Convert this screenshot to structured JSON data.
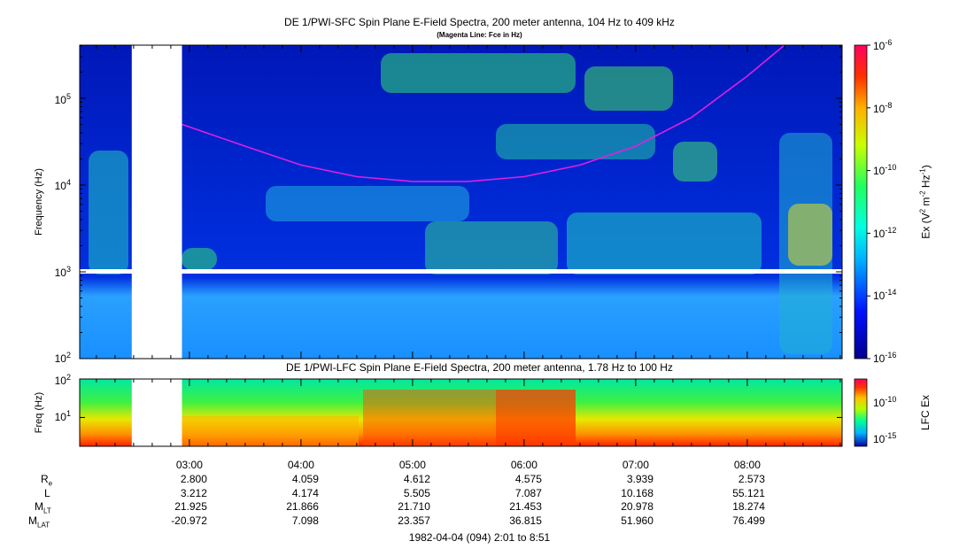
{
  "chart_data": [
    {
      "type": "heatmap",
      "title": "DE 1/PWI-SFC  Spin Plane E-Field Spectra, 200 meter antenna, 104 Hz to 409 kHz",
      "subtitle": "(Magenta Line: Fce in Hz)",
      "ylabel": "Frequency (Hz)",
      "yscale": "log",
      "ylim": [
        100,
        409000
      ],
      "ytick_labels": [
        {
          "base": "10",
          "exp": "2"
        },
        {
          "base": "10",
          "exp": "3"
        },
        {
          "base": "10",
          "exp": "4"
        },
        {
          "base": "10",
          "exp": "5"
        }
      ],
      "colorbar": {
        "label_pre": "Ex (V",
        "label_exp1": "2",
        "label_mid": " m",
        "label_exp2": "-2",
        "label_mid2": " Hz",
        "label_exp3": "-1",
        "label_post": ")",
        "scale": "log",
        "range": [
          1e-16,
          1e-06
        ],
        "ticks": [
          {
            "base": "10",
            "exp": "-6"
          },
          {
            "base": "10",
            "exp": "-8"
          },
          {
            "base": "10",
            "exp": "-10"
          },
          {
            "base": "10",
            "exp": "-12"
          },
          {
            "base": "10",
            "exp": "-14"
          },
          {
            "base": "10",
            "exp": "-16"
          }
        ]
      },
      "data_gap_time": [
        "02:29",
        "02:56"
      ],
      "fce_line_color": "#e020e0",
      "fce_line_hz": {
        "times": [
          "02:56",
          "03:30",
          "04:00",
          "04:30",
          "05:00",
          "05:30",
          "06:00",
          "06:30",
          "07:00",
          "07:30",
          "08:00",
          "08:20"
        ],
        "values": [
          50000,
          28000,
          17000,
          12500,
          11000,
          11000,
          12500,
          17000,
          28000,
          60000,
          180000,
          409000
        ]
      }
    },
    {
      "type": "heatmap",
      "title": "DE 1/PWI-LFC  Spin Plane E-Field Spectra, 200 meter antenna, 1.78 Hz to 100 Hz",
      "ylabel": "Freq (Hz)",
      "yscale": "log",
      "ylim": [
        1.78,
        100
      ],
      "ytick_labels": [
        {
          "base": "10",
          "exp": "1"
        },
        {
          "base": "10",
          "exp": "2"
        }
      ],
      "colorbar": {
        "label": "LFC Ex",
        "scale": "log",
        "ticks": [
          {
            "base": "10",
            "exp": "-10"
          },
          {
            "base": "10",
            "exp": "-15"
          }
        ]
      }
    }
  ],
  "x_axis": {
    "range": [
      "02:01",
      "08:51"
    ],
    "ticks": [
      "03:00",
      "04:00",
      "05:00",
      "06:00",
      "07:00",
      "08:00"
    ]
  },
  "ephemeris": [
    {
      "name": "R",
      "sub": "e",
      "values": [
        "2.800",
        "4.059",
        "4.612",
        "4.575",
        "3.939",
        "2.573"
      ]
    },
    {
      "name": "L",
      "sub": "",
      "values": [
        "3.212",
        "4.174",
        "5.505",
        "7.087",
        "10.168",
        "55.121"
      ]
    },
    {
      "name": "M",
      "sub": "LT",
      "values": [
        "21.925",
        "21.866",
        "21.710",
        "21.453",
        "20.978",
        "18.274"
      ]
    },
    {
      "name": "M",
      "sub": "LAT",
      "values": [
        "-20.972",
        "7.098",
        "23.357",
        "36.815",
        "51.960",
        "76.499"
      ]
    }
  ],
  "footer": "1982-04-04 (094) 2:01 to 8:51"
}
